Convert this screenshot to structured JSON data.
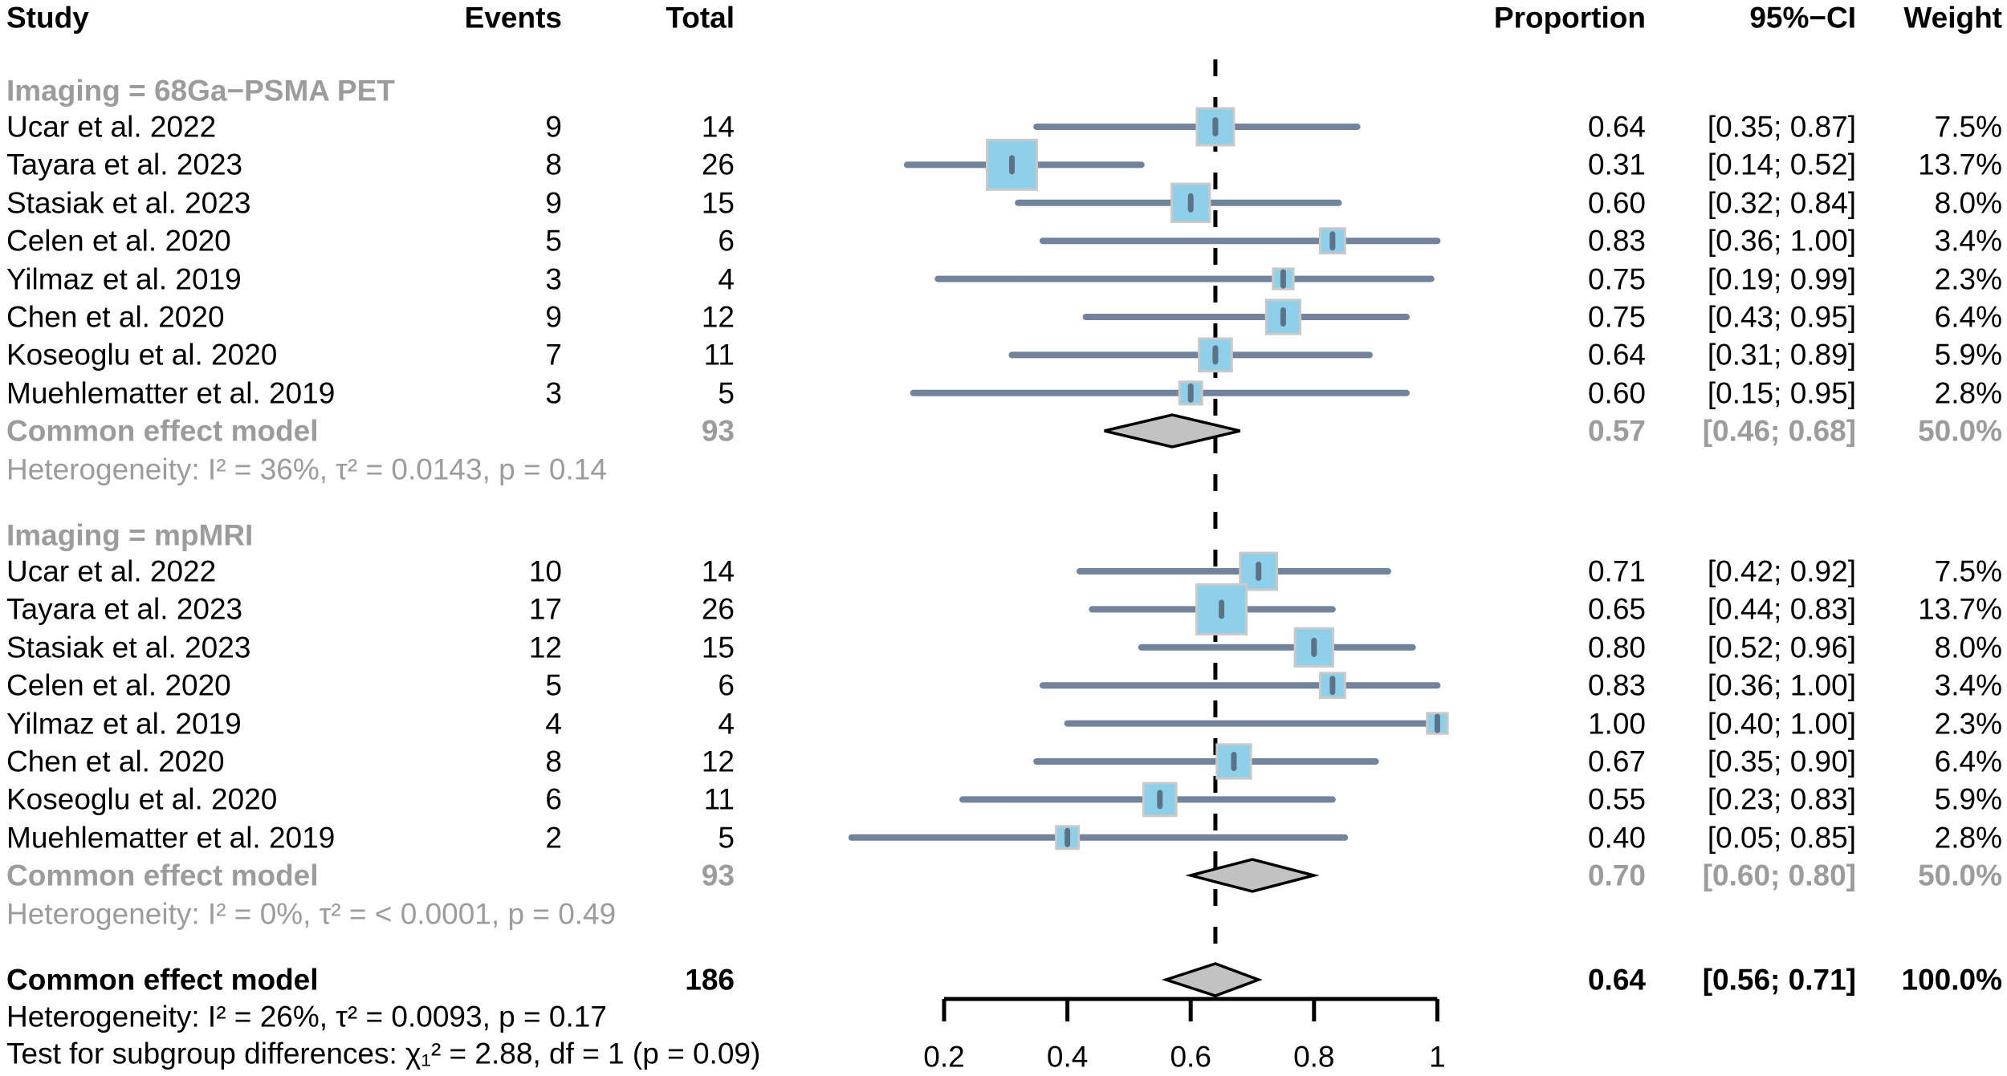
{
  "columns": {
    "study": "Study",
    "events": "Events",
    "total": "Total",
    "proportion": "Proportion",
    "ci": "95%−CI",
    "weight": "Weight"
  },
  "colors": {
    "square_fill": "#8ED0EA",
    "square_border": "#C9C9C9",
    "ci_line": "#71849B",
    "point_marker": "#5E7287",
    "diamond_fill": "#C2C2C2",
    "diamond_border": "#000000",
    "reference_line": "#000000",
    "axis": "#000000",
    "subdued_text": "#9C9C9C",
    "text": "#000000"
  },
  "chart_data": {
    "type": "scatter",
    "subtype": "forest-plot-meta-analysis",
    "x_axis": {
      "min": 0.2,
      "max": 1.0,
      "ticks": [
        0.2,
        0.4,
        0.6,
        0.8,
        1
      ],
      "tick_labels": [
        "0.2",
        "0.4",
        "0.6",
        "0.8",
        "1"
      ],
      "grid": false
    },
    "reference_line": 0.64,
    "groups": [
      {
        "label": "Imaging = 68Ga−PSMA PET",
        "studies": [
          {
            "name": "Ucar et al. 2022",
            "events": "9",
            "total": "14",
            "prop": 0.64,
            "lo": 0.35,
            "hi": 0.87,
            "prop_text": "0.64",
            "ci_text": "[0.35; 0.87]",
            "weight": 7.5,
            "weight_text": "7.5%"
          },
          {
            "name": "Tayara et al. 2023",
            "events": "8",
            "total": "26",
            "prop": 0.31,
            "lo": 0.14,
            "hi": 0.52,
            "prop_text": "0.31",
            "ci_text": "[0.14; 0.52]",
            "weight": 13.7,
            "weight_text": "13.7%"
          },
          {
            "name": "Stasiak et al. 2023",
            "events": "9",
            "total": "15",
            "prop": 0.6,
            "lo": 0.32,
            "hi": 0.84,
            "prop_text": "0.60",
            "ci_text": "[0.32; 0.84]",
            "weight": 8.0,
            "weight_text": "8.0%"
          },
          {
            "name": "Celen et al. 2020",
            "events": "5",
            "total": "6",
            "prop": 0.83,
            "lo": 0.36,
            "hi": 1.0,
            "prop_text": "0.83",
            "ci_text": "[0.36; 1.00]",
            "weight": 3.4,
            "weight_text": "3.4%"
          },
          {
            "name": "Yilmaz et al. 2019",
            "events": "3",
            "total": "4",
            "prop": 0.75,
            "lo": 0.19,
            "hi": 0.99,
            "prop_text": "0.75",
            "ci_text": "[0.19; 0.99]",
            "weight": 2.3,
            "weight_text": "2.3%"
          },
          {
            "name": "Chen et al. 2020",
            "events": "9",
            "total": "12",
            "prop": 0.75,
            "lo": 0.43,
            "hi": 0.95,
            "prop_text": "0.75",
            "ci_text": "[0.43; 0.95]",
            "weight": 6.4,
            "weight_text": "6.4%"
          },
          {
            "name": "Koseoglu et al. 2020",
            "events": "7",
            "total": "11",
            "prop": 0.64,
            "lo": 0.31,
            "hi": 0.89,
            "prop_text": "0.64",
            "ci_text": "[0.31; 0.89]",
            "weight": 5.9,
            "weight_text": "5.9%"
          },
          {
            "name": "Muehlematter et al. 2019",
            "events": "3",
            "total": "5",
            "prop": 0.6,
            "lo": 0.15,
            "hi": 0.95,
            "prop_text": "0.60",
            "ci_text": "[0.15; 0.95]",
            "weight": 2.8,
            "weight_text": "2.8%"
          }
        ],
        "summary": {
          "label": "Common effect model",
          "total": "93",
          "prop": 0.57,
          "lo": 0.46,
          "hi": 0.68,
          "prop_text": "0.57",
          "ci_text": "[0.46; 0.68]",
          "weight_text": "50.0%"
        },
        "heterogeneity": "Heterogeneity: I² = 36%, τ² = 0.0143, p = 0.14"
      },
      {
        "label": "Imaging = mpMRI",
        "studies": [
          {
            "name": "Ucar et al. 2022",
            "events": "10",
            "total": "14",
            "prop": 0.71,
            "lo": 0.42,
            "hi": 0.92,
            "prop_text": "0.71",
            "ci_text": "[0.42; 0.92]",
            "weight": 7.5,
            "weight_text": "7.5%"
          },
          {
            "name": "Tayara et al. 2023",
            "events": "17",
            "total": "26",
            "prop": 0.65,
            "lo": 0.44,
            "hi": 0.83,
            "prop_text": "0.65",
            "ci_text": "[0.44; 0.83]",
            "weight": 13.7,
            "weight_text": "13.7%"
          },
          {
            "name": "Stasiak et al. 2023",
            "events": "12",
            "total": "15",
            "prop": 0.8,
            "lo": 0.52,
            "hi": 0.96,
            "prop_text": "0.80",
            "ci_text": "[0.52; 0.96]",
            "weight": 8.0,
            "weight_text": "8.0%"
          },
          {
            "name": "Celen et al. 2020",
            "events": "5",
            "total": "6",
            "prop": 0.83,
            "lo": 0.36,
            "hi": 1.0,
            "prop_text": "0.83",
            "ci_text": "[0.36; 1.00]",
            "weight": 3.4,
            "weight_text": "3.4%"
          },
          {
            "name": "Yilmaz et al. 2019",
            "events": "4",
            "total": "4",
            "prop": 1.0,
            "lo": 0.4,
            "hi": 1.0,
            "prop_text": "1.00",
            "ci_text": "[0.40; 1.00]",
            "weight": 2.3,
            "weight_text": "2.3%"
          },
          {
            "name": "Chen et al. 2020",
            "events": "8",
            "total": "12",
            "prop": 0.67,
            "lo": 0.35,
            "hi": 0.9,
            "prop_text": "0.67",
            "ci_text": "[0.35; 0.90]",
            "weight": 6.4,
            "weight_text": "6.4%"
          },
          {
            "name": "Koseoglu et al. 2020",
            "events": "6",
            "total": "11",
            "prop": 0.55,
            "lo": 0.23,
            "hi": 0.83,
            "prop_text": "0.55",
            "ci_text": "[0.23; 0.83]",
            "weight": 5.9,
            "weight_text": "5.9%"
          },
          {
            "name": "Muehlematter et al. 2019",
            "events": "2",
            "total": "5",
            "prop": 0.4,
            "lo": 0.05,
            "hi": 0.85,
            "prop_text": "0.40",
            "ci_text": "[0.05; 0.85]",
            "weight": 2.8,
            "weight_text": "2.8%"
          }
        ],
        "summary": {
          "label": "Common effect model",
          "total": "93",
          "prop": 0.7,
          "lo": 0.6,
          "hi": 0.8,
          "prop_text": "0.70",
          "ci_text": "[0.60; 0.80]",
          "weight_text": "50.0%"
        },
        "heterogeneity": "Heterogeneity: I² = 0%, τ² = < 0.0001, p = 0.49"
      }
    ],
    "overall": {
      "label": "Common effect model",
      "total": "186",
      "prop": 0.64,
      "lo": 0.56,
      "hi": 0.71,
      "prop_text": "0.64",
      "ci_text": "[0.56; 0.71]",
      "weight_text": "100.0%",
      "heterogeneity": "Heterogeneity: I² = 26%, τ² = 0.0093, p = 0.17",
      "subgroup_test": "Test for subgroup differences: χ₁² = 2.88, df = 1 (p = 0.09)"
    }
  }
}
